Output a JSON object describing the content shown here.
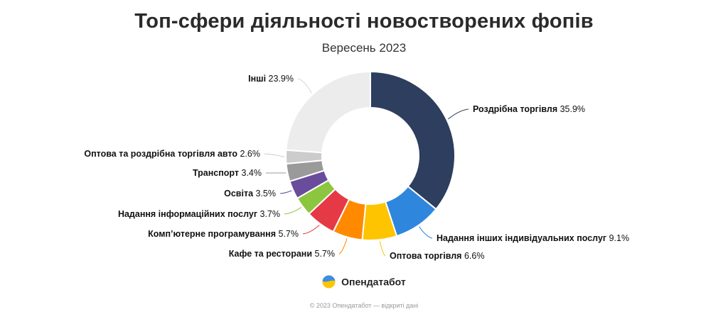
{
  "header": {
    "title": "Топ-сфери діяльності новостворених фопів",
    "subtitle": "Вересень 2023"
  },
  "chart_data": {
    "type": "pie",
    "donut": true,
    "title": "Топ-сфери діяльності новостворених фопів",
    "subtitle": "Вересень 2023",
    "unit": "%",
    "slices": [
      {
        "label": "Роздрібна торгівля",
        "value": 35.9,
        "value_label": "35.9%",
        "color": "#2d3e5e"
      },
      {
        "label": "Надання інших індивідуальних послуг",
        "value": 9.1,
        "value_label": "9.1%",
        "color": "#2f86dd"
      },
      {
        "label": "Оптова торгівля",
        "value": 6.6,
        "value_label": "6.6%",
        "color": "#ffc400"
      },
      {
        "label": "Кафе та ресторани",
        "value": 5.7,
        "value_label": "5.7%",
        "color": "#ff8a00"
      },
      {
        "label": "Комп’ютерне програмування",
        "value": 5.7,
        "value_label": "5.7%",
        "color": "#e63946"
      },
      {
        "label": "Надання інформаційних послуг",
        "value": 3.7,
        "value_label": "3.7%",
        "color": "#8cc63f"
      },
      {
        "label": "Освіта",
        "value": 3.5,
        "value_label": "3.5%",
        "color": "#6a4c9c"
      },
      {
        "label": "Транспорт",
        "value": 3.4,
        "value_label": "3.4%",
        "color": "#9a9a9a"
      },
      {
        "label": "Оптова та роздрібна торгівля авто",
        "value": 2.6,
        "value_label": "2.6%",
        "color": "#cccccc"
      },
      {
        "label": "Інші",
        "value": 23.9,
        "value_label": "23.9%",
        "color": "#ececec"
      }
    ]
  },
  "brand": {
    "name": "Опендатабот",
    "logo_icon": "opendatabot-logo-icon"
  },
  "footer": {
    "text": "© 2023 Опендатабот — відкриті дані"
  }
}
